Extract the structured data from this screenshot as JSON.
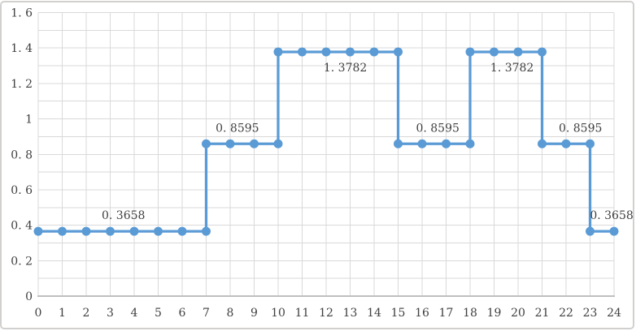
{
  "chart": {
    "background_color": "#ffffff",
    "frame_border_color": "#d2d0ce",
    "series_color": "#5b9bd5",
    "gridline_color": "#d9d9d9",
    "axis_line_color": "#bfbfbf",
    "tick_text_color": "#404040"
  },
  "chart_data": {
    "type": "line",
    "subtype": "step-line-with-markers",
    "title": "",
    "xlabel": "",
    "ylabel": "",
    "legend": "none",
    "grid": true,
    "xlim": [
      0,
      24
    ],
    "ylim": [
      0,
      1.6
    ],
    "y_gridline_step": 0.1,
    "x_gridline_step": 1,
    "x_ticks": [
      0,
      1,
      2,
      3,
      4,
      5,
      6,
      7,
      8,
      9,
      10,
      11,
      12,
      13,
      14,
      15,
      16,
      17,
      18,
      19,
      20,
      21,
      22,
      23,
      24
    ],
    "y_ticks": [
      "0",
      "0.2",
      "0.4",
      "0.6",
      "0.8",
      "1",
      "1.2",
      "1.4",
      "1.6"
    ],
    "step_levels": [
      {
        "from_x": 0,
        "to_x": 7,
        "value": 0.3658
      },
      {
        "from_x": 7,
        "to_x": 10,
        "value": 0.8595
      },
      {
        "from_x": 10,
        "to_x": 15,
        "value": 1.3782
      },
      {
        "from_x": 15,
        "to_x": 18,
        "value": 0.8595
      },
      {
        "from_x": 18,
        "to_x": 21,
        "value": 1.3782
      },
      {
        "from_x": 21,
        "to_x": 23,
        "value": 0.8595
      },
      {
        "from_x": 23,
        "to_x": 24,
        "value": 0.3658
      }
    ],
    "series": [
      {
        "name": "",
        "points": [
          [
            0,
            0.3658
          ],
          [
            1,
            0.3658
          ],
          [
            2,
            0.3658
          ],
          [
            3,
            0.3658
          ],
          [
            4,
            0.3658
          ],
          [
            5,
            0.3658
          ],
          [
            6,
            0.3658
          ],
          [
            7,
            0.3658
          ],
          [
            7,
            0.8595
          ],
          [
            8,
            0.8595
          ],
          [
            9,
            0.8595
          ],
          [
            10,
            0.8595
          ],
          [
            10,
            1.3782
          ],
          [
            11,
            1.3782
          ],
          [
            12,
            1.3782
          ],
          [
            13,
            1.3782
          ],
          [
            14,
            1.3782
          ],
          [
            15,
            1.3782
          ],
          [
            15,
            0.8595
          ],
          [
            16,
            0.8595
          ],
          [
            17,
            0.8595
          ],
          [
            18,
            0.8595
          ],
          [
            18,
            1.3782
          ],
          [
            19,
            1.3782
          ],
          [
            20,
            1.3782
          ],
          [
            21,
            1.3782
          ],
          [
            21,
            0.8595
          ],
          [
            22,
            0.8595
          ],
          [
            23,
            0.8595
          ],
          [
            23,
            0.3658
          ],
          [
            24,
            0.3658
          ]
        ]
      }
    ],
    "data_labels": [
      {
        "text": "0.3658",
        "x": 3.55,
        "y": 0.3658,
        "placement": "above"
      },
      {
        "text": "0.8595",
        "x": 8.3,
        "y": 0.8595,
        "placement": "above"
      },
      {
        "text": "1.3782",
        "x": 12.8,
        "y": 1.3782,
        "placement": "below"
      },
      {
        "text": "0.8595",
        "x": 16.65,
        "y": 0.8595,
        "placement": "above"
      },
      {
        "text": "1.3782",
        "x": 19.75,
        "y": 1.3782,
        "placement": "below"
      },
      {
        "text": "0.8595",
        "x": 22.6,
        "y": 0.8595,
        "placement": "above"
      },
      {
        "text": "0.3658",
        "x": 23.9,
        "y": 0.3658,
        "placement": "above"
      }
    ]
  }
}
